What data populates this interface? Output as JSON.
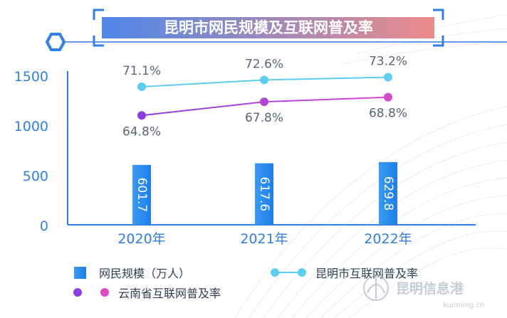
{
  "chart_data": {
    "type": "bar+line",
    "title": "昆明市网民规模及互联网普及率",
    "categories": [
      "2020年",
      "2021年",
      "2022年"
    ],
    "y_ticks": [
      "0",
      "500",
      "1000",
      "1500"
    ],
    "ylim": [
      0,
      1500
    ],
    "grid": false,
    "legend_position": "bottom",
    "bar_series": {
      "name": "网民规模（万人）",
      "values": [
        601.7,
        617.6,
        629.8
      ],
      "labels": [
        "601.7",
        "617.6",
        "629.8"
      ],
      "color": "#2e8ff0"
    },
    "line_series": [
      {
        "name": "昆明市互联网普及率",
        "values": [
          71.1,
          72.6,
          73.2
        ],
        "labels": [
          "71.1%",
          "72.6%",
          "73.2%"
        ],
        "color": "#5ecdf2"
      },
      {
        "name": "云南省互联网普及率",
        "values": [
          64.8,
          67.8,
          68.8
        ],
        "labels": [
          "64.8%",
          "67.8%",
          "68.8%"
        ],
        "color": "#8a3fe0",
        "end_color": "#e04ac0"
      }
    ]
  },
  "watermark": {
    "text": "昆明信息港",
    "url": "kunming.cn"
  },
  "colors": {
    "axis": "#2f7fe6",
    "tick_label": "#2f7fe6",
    "category_label": "#2f7fe6",
    "value_label": "#5b6477",
    "bar_label": "#ffffff",
    "banner_start": "#4f87e9",
    "banner_end": "#ec8a8a"
  }
}
